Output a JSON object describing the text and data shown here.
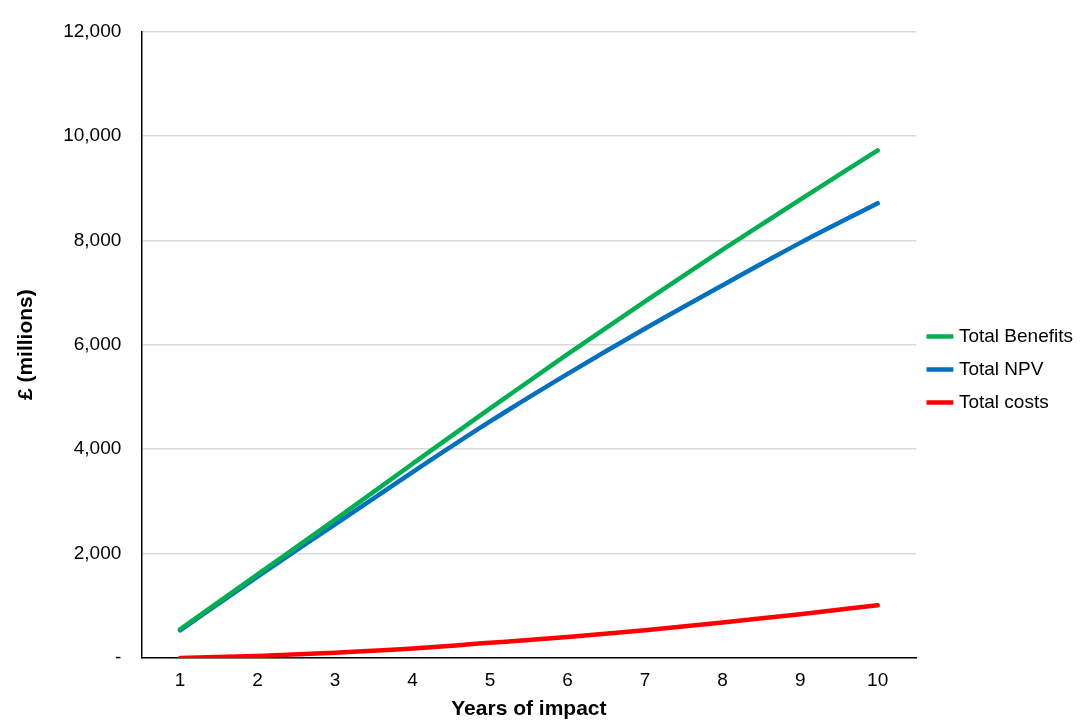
{
  "chart_data": {
    "type": "line",
    "xlabel": "Years of impact",
    "ylabel": "£ (millions)",
    "categories": [
      "1",
      "2",
      "3",
      "4",
      "5",
      "6",
      "7",
      "8",
      "9",
      "10"
    ],
    "series": [
      {
        "name": "Total Benefits",
        "color": "#00b050",
        "values": [
          550,
          1600,
          2650,
          3720,
          4780,
          5820,
          6830,
          7820,
          8780,
          9720
        ]
      },
      {
        "name": "Total NPV",
        "color": "#0070c0",
        "values": [
          530,
          1560,
          2560,
          3560,
          4530,
          5440,
          6310,
          7140,
          7950,
          8710
        ]
      },
      {
        "name": "Total costs",
        "color": "#ff0000",
        "values": [
          0,
          40,
          100,
          180,
          290,
          400,
          530,
          680,
          840,
          1010
        ]
      }
    ],
    "ylim": [
      0,
      12000
    ],
    "yticks": [
      {
        "value": 0,
        "label": "-"
      },
      {
        "value": 2000,
        "label": "2,000"
      },
      {
        "value": 4000,
        "label": "4,000"
      },
      {
        "value": 6000,
        "label": "6,000"
      },
      {
        "value": 8000,
        "label": "8,000"
      },
      {
        "value": 10000,
        "label": "10,000"
      },
      {
        "value": 12000,
        "label": "12,000"
      }
    ],
    "grid": "y",
    "legend": "right",
    "marker": "none",
    "line_style": "solid"
  }
}
